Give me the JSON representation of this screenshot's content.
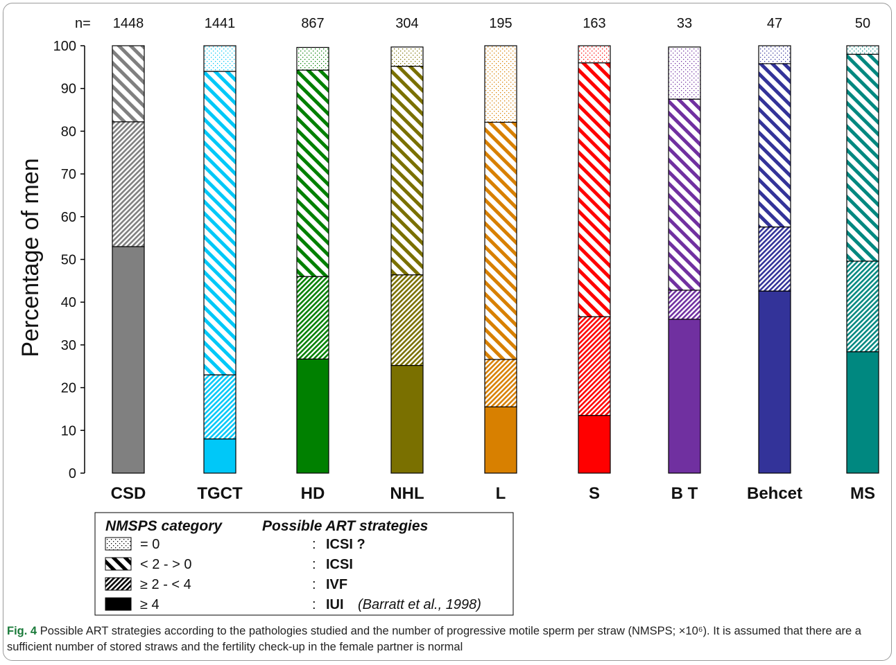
{
  "chart_data": {
    "type": "bar",
    "stacked": true,
    "n_label": "n=",
    "categories": [
      "CSD",
      "TGCT",
      "HD",
      "NHL",
      "L",
      "S",
      "B T",
      "Behcet",
      "MS"
    ],
    "n_values": [
      "1448",
      "1441",
      "867",
      "304",
      "195",
      "163",
      "33",
      "47",
      "50"
    ],
    "colors": [
      "#808080",
      "#00c8f8",
      "#008000",
      "#7a7000",
      "#d88000",
      "#ff0000",
      "#7030a0",
      "#333399",
      "#008880"
    ],
    "ylabel": "Percentage of men",
    "ylim": [
      0,
      100
    ],
    "yticks": [
      0,
      10,
      20,
      30,
      40,
      50,
      60,
      70,
      80,
      90,
      100
    ],
    "series": [
      {
        "name": "≥ 4",
        "pattern": "solid",
        "values": [
          53,
          8,
          26.7,
          25.2,
          15.5,
          13.5,
          36,
          42.6,
          28.4
        ]
      },
      {
        "name": "≥ 2 - < 4",
        "pattern": "dense-hatch",
        "values": [
          29.2,
          15,
          19.3,
          21.2,
          11.1,
          23.1,
          6.8,
          15,
          21.2
        ]
      },
      {
        "name": "< 2 - > 0",
        "pattern": "wide-hatch",
        "values": [
          17.8,
          71,
          48.3,
          48.8,
          55.5,
          59.4,
          44.7,
          38.2,
          48.4
        ]
      },
      {
        "name": "= 0",
        "pattern": "dots",
        "values": [
          0,
          6,
          5.3,
          4.5,
          17.9,
          4,
          12.2,
          4.2,
          2
        ]
      }
    ],
    "legend": {
      "heading_left": "NMSPS  category",
      "heading_right": "Possible ART strategies",
      "rows": [
        {
          "category": "= 0",
          "pattern": "dots",
          "colon": ":",
          "strategy": "ICSI ?",
          "note": ""
        },
        {
          "category": "< 2 - > 0",
          "pattern": "wide-hatch",
          "colon": ":",
          "strategy": "ICSI",
          "note": ""
        },
        {
          "category": "≥ 2 - < 4",
          "pattern": "dense-hatch",
          "colon": ":",
          "strategy": "IVF",
          "note": ""
        },
        {
          "category": "≥ 4",
          "pattern": "solid",
          "colon": ":",
          "strategy": "IUI",
          "note": "(Barratt et al., 1998)"
        }
      ]
    }
  },
  "caption": {
    "label": "Fig. 4",
    "text": "Possible ART strategies according to the pathologies studied and the number of progressive motile sperm per straw (NMSPS; ×10⁶). It is assumed that there are a sufficient number of stored straws and the fertility check-up in the female partner is normal"
  }
}
